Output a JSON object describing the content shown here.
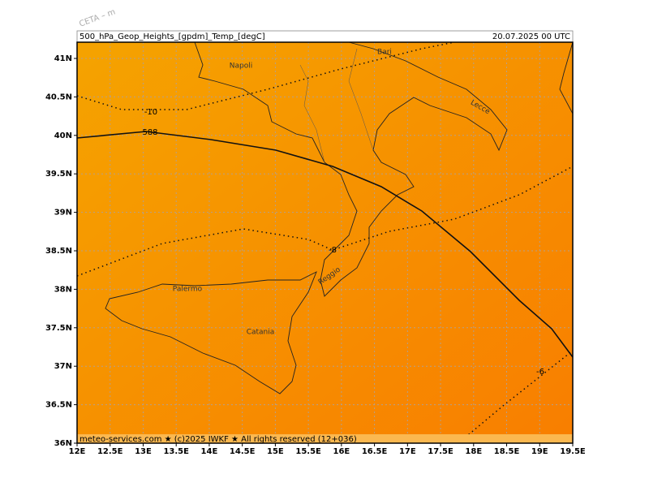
{
  "watermark": "CETA – m",
  "header": {
    "left": "500_hPa_Geop_Heights_[gpdm]_Temp_[degC]",
    "right": "20.07.2025 00 UTC"
  },
  "lat_labels": [
    "41N",
    "40.5N",
    "40N",
    "39.5N",
    "39N",
    "38.5N",
    "38N",
    "37.5N",
    "37N",
    "36.5N",
    "36N"
  ],
  "lon_labels": [
    "12E",
    "12.5E",
    "13E",
    "13.5E",
    "14E",
    "14.5E",
    "15E",
    "15.5E",
    "16E",
    "16.5E",
    "17E",
    "17.5E",
    "18E",
    "18.5E",
    "19E",
    "19.5E"
  ],
  "cities": [
    "Napoli",
    "Bari",
    "Lecce",
    "Reggio",
    "Palermo",
    "Catania"
  ],
  "contour_labels": [
    "-10",
    "588",
    "-8",
    "-6"
  ],
  "footer": "meteo-services.com ★ (c)2025 IWKF ★ All rights reserved (12+036)"
}
